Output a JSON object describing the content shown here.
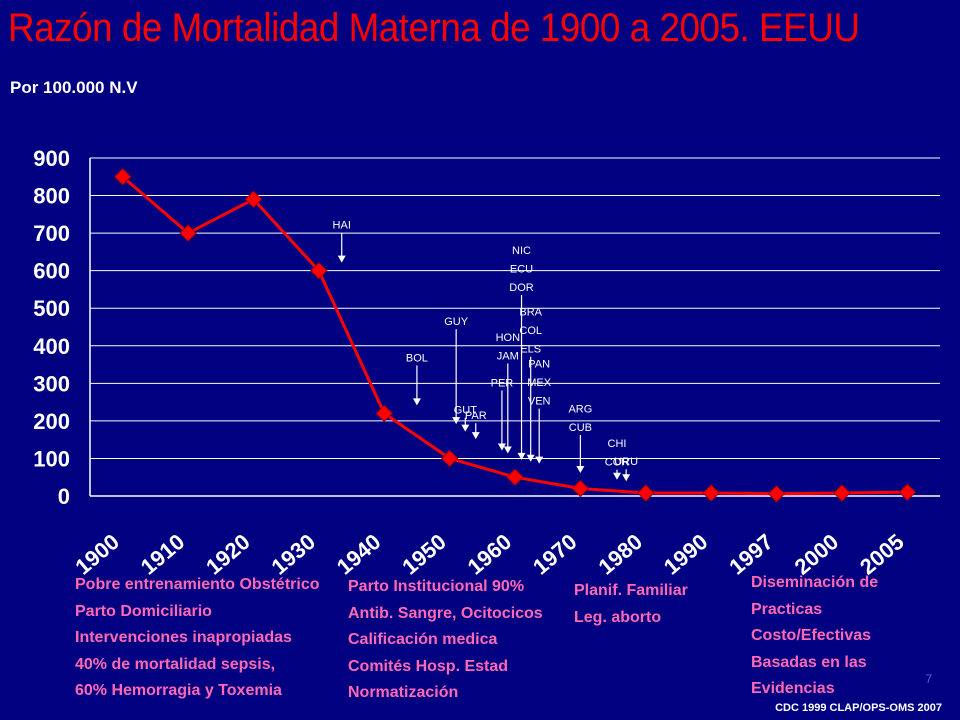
{
  "slide": {
    "title": "Razón de Mortalidad Materna de 1900 a 2005. EEUU",
    "subtitle": "Por 100.000 N.V",
    "footer": "CDC 1999 CLAP/OPS-OMS 2007",
    "page_number": "7"
  },
  "colors": {
    "background": "#000080",
    "title": "#ff0000",
    "line": "#ff0000",
    "notes": "#ff69b4",
    "text": "#ffffff"
  },
  "chart_data": {
    "type": "line",
    "categories": [
      "1900",
      "1910",
      "1920",
      "1930",
      "1940",
      "1950",
      "1960",
      "1970",
      "1980",
      "1990",
      "1997",
      "2000",
      "2005"
    ],
    "values": [
      850,
      700,
      790,
      600,
      220,
      100,
      50,
      20,
      8,
      8,
      6,
      8,
      10
    ],
    "ylim": [
      0,
      900
    ],
    "yticks": [
      "0",
      "100",
      "200",
      "300",
      "400",
      "500",
      "600",
      "700",
      "800",
      "900"
    ],
    "grid": true,
    "annotations": [
      {
        "lines": [
          "HAI"
        ],
        "year": 1933.5,
        "level": 600
      },
      {
        "lines": [
          "BOL"
        ],
        "year": 1945,
        "level": 220
      },
      {
        "lines": [
          "GUY"
        ],
        "year": 1951,
        "level": 170
      },
      {
        "lines": [
          "GUT"
        ],
        "year": 1952.4,
        "level": 150
      },
      {
        "lines": [
          "PAR"
        ],
        "year": 1954,
        "level": 130
      },
      {
        "lines": [
          "PER"
        ],
        "year": 1958,
        "level": 100
      },
      {
        "lines": [
          "HON",
          "JAM"
        ],
        "year": 1958.9,
        "level": 92
      },
      {
        "lines": [
          "NIC",
          "ECU",
          "DOR"
        ],
        "year": 1961,
        "level": 75
      },
      {
        "lines": [
          "BRA",
          "COL",
          "ELS"
        ],
        "year": 1962.4,
        "level": 70
      },
      {
        "lines": [
          "PAN",
          "MEX",
          "VEN"
        ],
        "year": 1963.7,
        "level": 65
      },
      {
        "lines": [
          "ARG",
          "CUB"
        ],
        "year": 1970,
        "level": 40
      },
      {
        "lines": [
          "CHI",
          "COR"
        ],
        "year": 1975.6,
        "level": 22
      },
      {
        "lines": [
          "URU"
        ],
        "year": 1977,
        "level": 18
      }
    ]
  },
  "notes": [
    {
      "lines": [
        "Pobre entrenamiento Obstétrico",
        "Parto Domiciliario",
        "Intervenciones inapropiadas",
        "40% de mortalidad sepsis,",
        "60% Hemorragia y Toxemia"
      ]
    },
    {
      "lines": [
        "Parto Institucional 90%",
        "Antib. Sangre, Ocitocicos",
        "Calificación medica",
        "Comités Hosp. Estad",
        "Normatización"
      ]
    },
    {
      "lines": [
        "Planif. Familiar",
        "Leg. aborto"
      ]
    },
    {
      "lines": [
        "Diseminación de",
        "Practicas",
        "Costo/Efectivas",
        "Basadas en las",
        "Evidencias"
      ]
    }
  ]
}
